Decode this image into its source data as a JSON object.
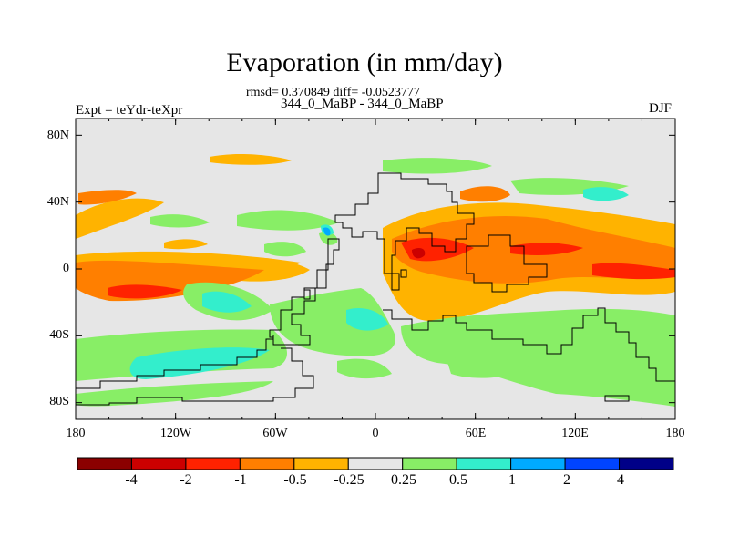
{
  "header": {
    "title": "Evaporation (in mm/day)",
    "subtitle": "rmsd= 0.370849 diff= -0.0523777",
    "period": "344_0_MaBP - 344_0_MaBP",
    "experiment": "Expt = teYdr-teXpr",
    "season": "DJF"
  },
  "axes": {
    "lat_labels": [
      "80N",
      "40N",
      "0",
      "40S",
      "80S"
    ],
    "lon_labels": [
      "180",
      "120W",
      "60W",
      "0",
      "60E",
      "120E",
      "180"
    ]
  },
  "colorbar": {
    "labels": [
      "-4",
      "-2",
      "-1",
      "-0.5",
      "-0.25",
      "0.25",
      "0.5",
      "1",
      "2",
      "4"
    ],
    "colors": [
      "#8b0000",
      "#cc0000",
      "#ff2200",
      "#ff7f00",
      "#ffb300",
      "#e6e6e6",
      "#88ee66",
      "#33eecc",
      "#00aaff",
      "#0044ff",
      "#000088"
    ]
  },
  "palette": {
    "background": "#e6e6e6",
    "dark_red": "#cc0000",
    "red": "#ff2200",
    "orange": "#ff7f00",
    "light_orange": "#ffb300",
    "green": "#88ee66",
    "teal": "#33eecc",
    "sky": "#00aaff"
  }
}
